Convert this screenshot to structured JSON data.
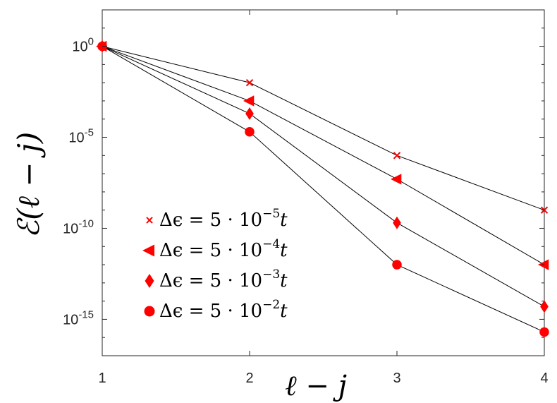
{
  "chart_data": {
    "type": "scatter",
    "xlabel": "ℓ − j",
    "ylabel": "ℰ(ℓ − j)",
    "x_scale": "linear",
    "y_scale": "log",
    "xlim": [
      1,
      4
    ],
    "ylim": [
      1e-17,
      100.0
    ],
    "x_ticks": [
      1,
      2,
      3,
      4
    ],
    "x_tick_labels": [
      "1",
      "2",
      "3",
      "4"
    ],
    "y_ticks": [
      1.0,
      1e-05,
      1e-10,
      1e-15
    ],
    "y_tick_labels": [
      {
        "base": "10",
        "exp": "0"
      },
      {
        "base": "10",
        "exp": "-5"
      },
      {
        "base": "10",
        "exp": "-10"
      },
      {
        "base": "10",
        "exp": "-15"
      }
    ],
    "grid": false,
    "legend_position": "bottom-left",
    "marker_color": "#ff0000",
    "line_color": "#000000",
    "series": [
      {
        "name": "Δϵ = 5 · 10⁻⁵t",
        "marker": "x",
        "x": [
          1,
          2,
          3,
          4
        ],
        "y": [
          1,
          0.01,
          1e-06,
          1e-09
        ]
      },
      {
        "name": "Δϵ = 5 · 10⁻⁴t",
        "marker": "triangle-left",
        "x": [
          1,
          2,
          3,
          4
        ],
        "y": [
          1,
          0.001,
          5e-08,
          1e-12
        ]
      },
      {
        "name": "Δϵ = 5 · 10⁻³t",
        "marker": "diamond",
        "x": [
          1,
          2,
          3,
          4
        ],
        "y": [
          1,
          0.0002,
          2e-10,
          5e-15
        ]
      },
      {
        "name": "Δϵ = 5 · 10⁻²t",
        "marker": "circle",
        "x": [
          1,
          2,
          3,
          4
        ],
        "y": [
          1,
          2e-05,
          1e-12,
          2e-16
        ]
      }
    ],
    "legend_labels": [
      {
        "prefix": "Δϵ = 5 · 10",
        "exp": "−5",
        "suffix": "t"
      },
      {
        "prefix": "Δϵ = 5 · 10",
        "exp": "−4",
        "suffix": "t"
      },
      {
        "prefix": "Δϵ = 5 · 10",
        "exp": "−3",
        "suffix": "t"
      },
      {
        "prefix": "Δϵ = 5 · 10",
        "exp": "−2",
        "suffix": "t"
      }
    ]
  }
}
